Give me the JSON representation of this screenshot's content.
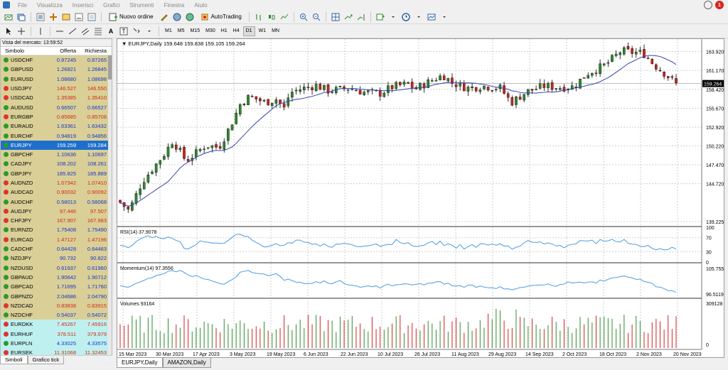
{
  "menu": [
    "File",
    "Visualizza",
    "Inserisci",
    "Grafici",
    "Strumenti",
    "Finestra",
    "Aiuto"
  ],
  "notification_count": "1",
  "toolbar": {
    "new_order": "Nuovo ordine",
    "autotrading": "AutoTrading",
    "timeframes": [
      "M1",
      "M5",
      "M15",
      "M30",
      "H1",
      "H4",
      "D1",
      "W1",
      "MN"
    ],
    "active_timeframe": "D1"
  },
  "market_watch": {
    "title": "Vista del mercato: 13:59:52",
    "col_symbol": "Simbolo",
    "col_bid": "Offerta",
    "col_ask": "Richiesta",
    "rows": [
      {
        "s": "USDCHF",
        "b": "0.87245",
        "a": "0.87265",
        "d": "up"
      },
      {
        "s": "GBPUSD",
        "b": "1.26821",
        "a": "1.26845",
        "d": "up"
      },
      {
        "s": "EURUSD",
        "b": "1.08680",
        "a": "1.08698",
        "d": "up"
      },
      {
        "s": "USDJPY",
        "b": "146.527",
        "a": "146.550",
        "d": "dn"
      },
      {
        "s": "USDCAD",
        "b": "1.35385",
        "a": "1.35410",
        "d": "dn"
      },
      {
        "s": "AUDUSD",
        "b": "0.66507",
        "a": "0.66527",
        "d": "up"
      },
      {
        "s": "EURGBP",
        "b": "0.85685",
        "a": "0.85708",
        "d": "dn"
      },
      {
        "s": "EURAUD",
        "b": "1.63361",
        "a": "1.63432",
        "d": "up"
      },
      {
        "s": "EURCHF",
        "b": "0.94819",
        "a": "0.94856",
        "d": "up"
      },
      {
        "s": "EURJPY",
        "b": "159.259",
        "a": "159.284",
        "d": "sel"
      },
      {
        "s": "GBPCHF",
        "b": "1.10636",
        "a": "1.10697",
        "d": "up"
      },
      {
        "s": "CADJPY",
        "b": "108.202",
        "a": "108.261",
        "d": "up"
      },
      {
        "s": "GBPJPY",
        "b": "185.825",
        "a": "185.889",
        "d": "up"
      },
      {
        "s": "AUDNZD",
        "b": "1.07342",
        "a": "1.07410",
        "d": "dn"
      },
      {
        "s": "AUDCAD",
        "b": "0.90032",
        "a": "0.90092",
        "d": "dn"
      },
      {
        "s": "AUDCHF",
        "b": "0.58013",
        "a": "0.58068",
        "d": "up"
      },
      {
        "s": "AUDJPY",
        "b": "97.446",
        "a": "97.507",
        "d": "dn"
      },
      {
        "s": "CHFJPY",
        "b": "167.907",
        "a": "167.983",
        "d": "dn"
      },
      {
        "s": "EURNZD",
        "b": "1.75408",
        "a": "1.75490",
        "d": "up"
      },
      {
        "s": "EURCAD",
        "b": "1.47127",
        "a": "1.47196",
        "d": "dn"
      },
      {
        "s": "CADCHF",
        "b": "0.64428",
        "a": "0.64463",
        "d": "up"
      },
      {
        "s": "NZDJPY",
        "b": "90.732",
        "a": "90.822",
        "d": "up"
      },
      {
        "s": "NZDUSD",
        "b": "0.61937",
        "a": "0.61960",
        "d": "up"
      },
      {
        "s": "GBPAUD",
        "b": "1.90642",
        "a": "1.90712",
        "d": "up"
      },
      {
        "s": "GBPCAD",
        "b": "1.71695",
        "a": "1.71760",
        "d": "up"
      },
      {
        "s": "GBPNZD",
        "b": "2.04686",
        "a": "2.04790",
        "d": "up"
      },
      {
        "s": "NZDCAD",
        "b": "0.83838",
        "a": "0.83915",
        "d": "dn"
      },
      {
        "s": "NZDCHF",
        "b": "0.54037",
        "a": "0.54072",
        "d": "up"
      },
      {
        "s": "EURDKK",
        "b": "7.45267",
        "a": "7.45916",
        "d": "cyan-dn"
      },
      {
        "s": "EURHUF",
        "b": "378.511",
        "a": "379.979",
        "d": "cyan-dn"
      },
      {
        "s": "EURPLN",
        "b": "4.33025",
        "a": "4.33575",
        "d": "cyan-up"
      },
      {
        "s": "EURSEK",
        "b": "11.31068",
        "a": "11.32453",
        "d": "cyan-dn"
      }
    ],
    "tabs": [
      "Simboli",
      "Grafico tick"
    ]
  },
  "chart": {
    "header": "EURJPY,Daily  159.648 159.838 159.105 159.264",
    "current_price": "159.264",
    "price_axis": [
      "163.920",
      "161.170",
      "158.420",
      "155.670",
      "152.920",
      "150.220",
      "147.470",
      "144.720",
      "139.225"
    ],
    "rsi_label": "RSI(14) 37.9078",
    "rsi_axis": [
      "100",
      "70",
      "30",
      "0"
    ],
    "momentum_label": "Momentum(14) 97.3556",
    "momentum_axis": [
      "105.7557",
      "96.5119"
    ],
    "volume_label": "Volumes 93164",
    "volume_axis": [
      "309128",
      "0"
    ],
    "date_axis": [
      "15 Mar 2023",
      "30 Mar 2023",
      "17 Apr 2023",
      "3 May 2023",
      "19 May 2023",
      "6 Jun 2023",
      "22 Jun 2023",
      "10 Jul 2023",
      "26 Jul 2023",
      "11 Aug 2023",
      "29 Aug 2023",
      "14 Sep 2023",
      "2 Oct 2023",
      "18 Oct 2023",
      "2 Nov 2023",
      "20 Nov 2023"
    ],
    "tabs": [
      "EURJPY,Daily",
      "AMAZON,Daily"
    ],
    "colors": {
      "bull": "#2e8b2e",
      "bear": "#d42020",
      "ma": "#3344aa",
      "osc": "#4a9be0"
    }
  }
}
